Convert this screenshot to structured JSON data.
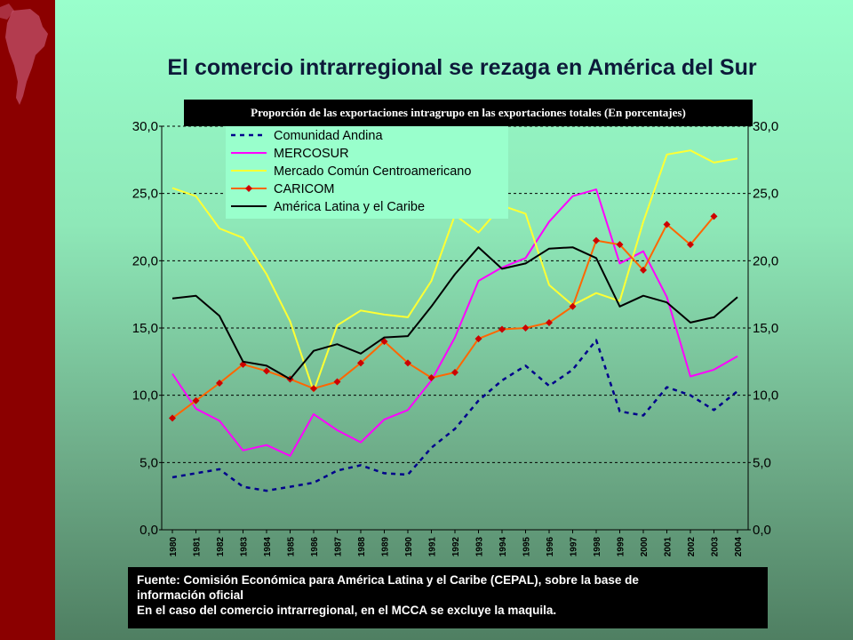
{
  "slide": {
    "title": "El comercio intrarregional se rezaga en América del Sur",
    "subtitle": "Proporción de las exportaciones intragrupo en las exportaciones totales (En porcentajes)",
    "footer_lines": [
      "Fuente: Comisión Económica para América Latina y el Caribe (CEPAL), sobre la base de",
      "información oficial",
      "En el caso del comercio intrarregional, en el MCCA se excluye la maquila."
    ]
  },
  "colors": {
    "background_top": "#99ffcc",
    "left_bar": "#8b0000",
    "comunidad_andina": "#00008b",
    "mercosur": "#ff00ff",
    "mcca": "#ffff33",
    "caricom": "#ff6600",
    "caricom_marker": "#cc0000",
    "alc": "#000000"
  },
  "chart_data": {
    "type": "line",
    "x": [
      "1980",
      "1981",
      "1982",
      "1983",
      "1984",
      "1985",
      "1986",
      "1987",
      "1988",
      "1989",
      "1990",
      "1991",
      "1992",
      "1993",
      "1994",
      "1995",
      "1996",
      "1997",
      "1998",
      "1999",
      "2000",
      "2001",
      "2002",
      "2003",
      "2004"
    ],
    "ylim": [
      0,
      30
    ],
    "yticks": [
      "0,0",
      "5,0",
      "10,0",
      "15,0",
      "20,0",
      "25,0",
      "30,0"
    ],
    "y2ticks": [
      "0,0",
      "5,0",
      "10,0",
      "15,0",
      "20,0",
      "25,0",
      "30,0"
    ],
    "grid": "horizontal dashed",
    "legend_position": "top-left",
    "series": [
      {
        "name": "Comunidad Andina",
        "style": "dashed",
        "values": [
          3.9,
          4.2,
          4.5,
          3.2,
          2.9,
          3.2,
          3.5,
          4.4,
          4.8,
          4.2,
          4.1,
          6.1,
          7.5,
          9.6,
          11.1,
          12.2,
          10.7,
          11.9,
          14.1,
          8.8,
          8.5,
          10.6,
          10.0,
          8.9,
          10.3
        ]
      },
      {
        "name": "MERCOSUR",
        "style": "solid",
        "values": [
          11.6,
          9.0,
          8.1,
          5.9,
          6.3,
          5.5,
          8.6,
          7.4,
          6.5,
          8.2,
          8.9,
          11.1,
          14.3,
          18.5,
          19.5,
          20.2,
          22.9,
          24.8,
          25.3,
          19.8,
          20.7,
          17.3,
          11.4,
          11.9,
          12.9
        ]
      },
      {
        "name": "Mercado Común Centroamericano",
        "style": "solid",
        "values": [
          25.4,
          24.8,
          22.4,
          21.7,
          19.0,
          15.5,
          10.3,
          15.2,
          16.3,
          16.0,
          15.8,
          18.5,
          23.4,
          22.1,
          24.1,
          23.5,
          18.2,
          16.7,
          17.6,
          17.0,
          22.9,
          27.9,
          28.2,
          27.3,
          27.6
        ]
      },
      {
        "name": "CARICOM",
        "style": "solid-marker",
        "values": [
          8.3,
          9.6,
          10.9,
          12.3,
          11.8,
          11.2,
          10.5,
          11.0,
          12.4,
          14.0,
          12.4,
          11.3,
          11.7,
          14.2,
          14.9,
          15.0,
          15.4,
          16.6,
          21.5,
          21.2,
          19.3,
          22.7,
          21.2,
          23.3,
          null
        ]
      },
      {
        "name": "América Latina y el Caribe",
        "style": "solid",
        "values": [
          17.2,
          17.4,
          15.9,
          12.5,
          12.2,
          11.2,
          13.3,
          13.8,
          13.1,
          14.3,
          14.4,
          16.6,
          19.0,
          21.0,
          19.4,
          19.8,
          20.9,
          21.0,
          20.2,
          16.6,
          17.4,
          16.9,
          15.4,
          15.8,
          17.3
        ]
      }
    ]
  }
}
